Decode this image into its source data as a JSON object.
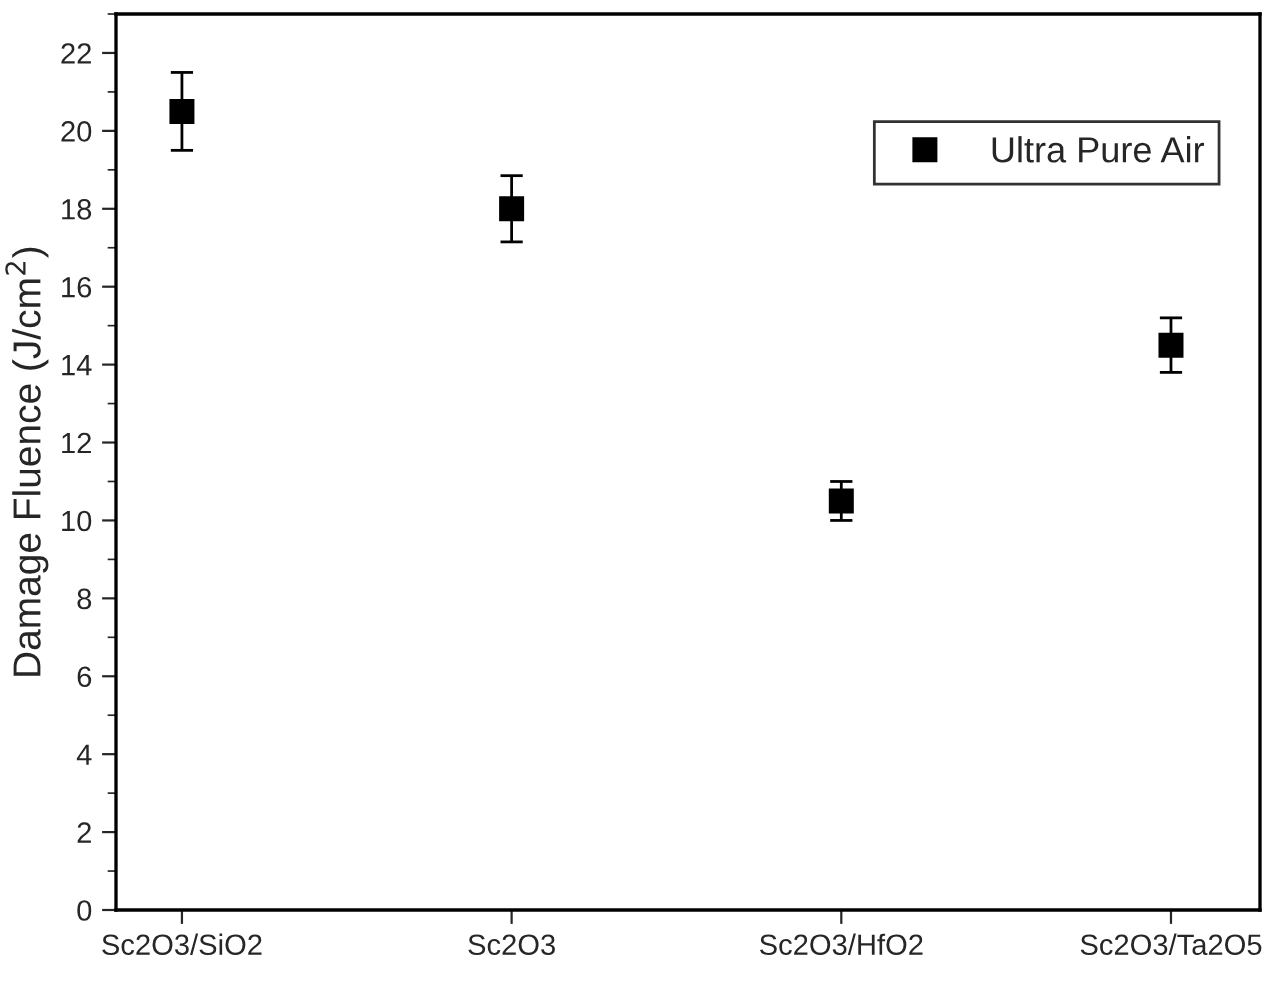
{
  "chart_data": {
    "type": "scatter",
    "ylabel": "Damage Fluence (J/cm$^{2}$)",
    "categories": [
      "Sc2O3/SiO2",
      "Sc2O3",
      "Sc2O3/HfO2",
      "Sc2O3/Ta2O5"
    ],
    "series": [
      {
        "name": "Ultra Pure Air",
        "color": "#000000",
        "values": [
          20.5,
          18.0,
          10.5,
          14.5
        ],
        "errors": [
          1.0,
          0.85,
          0.5,
          0.7
        ]
      }
    ],
    "ylim": [
      0,
      23
    ],
    "yticks": [
      0,
      2,
      4,
      6,
      8,
      10,
      12,
      14,
      16,
      18,
      20,
      22
    ],
    "marker": "square",
    "legend": "top right",
    "grid": false
  }
}
